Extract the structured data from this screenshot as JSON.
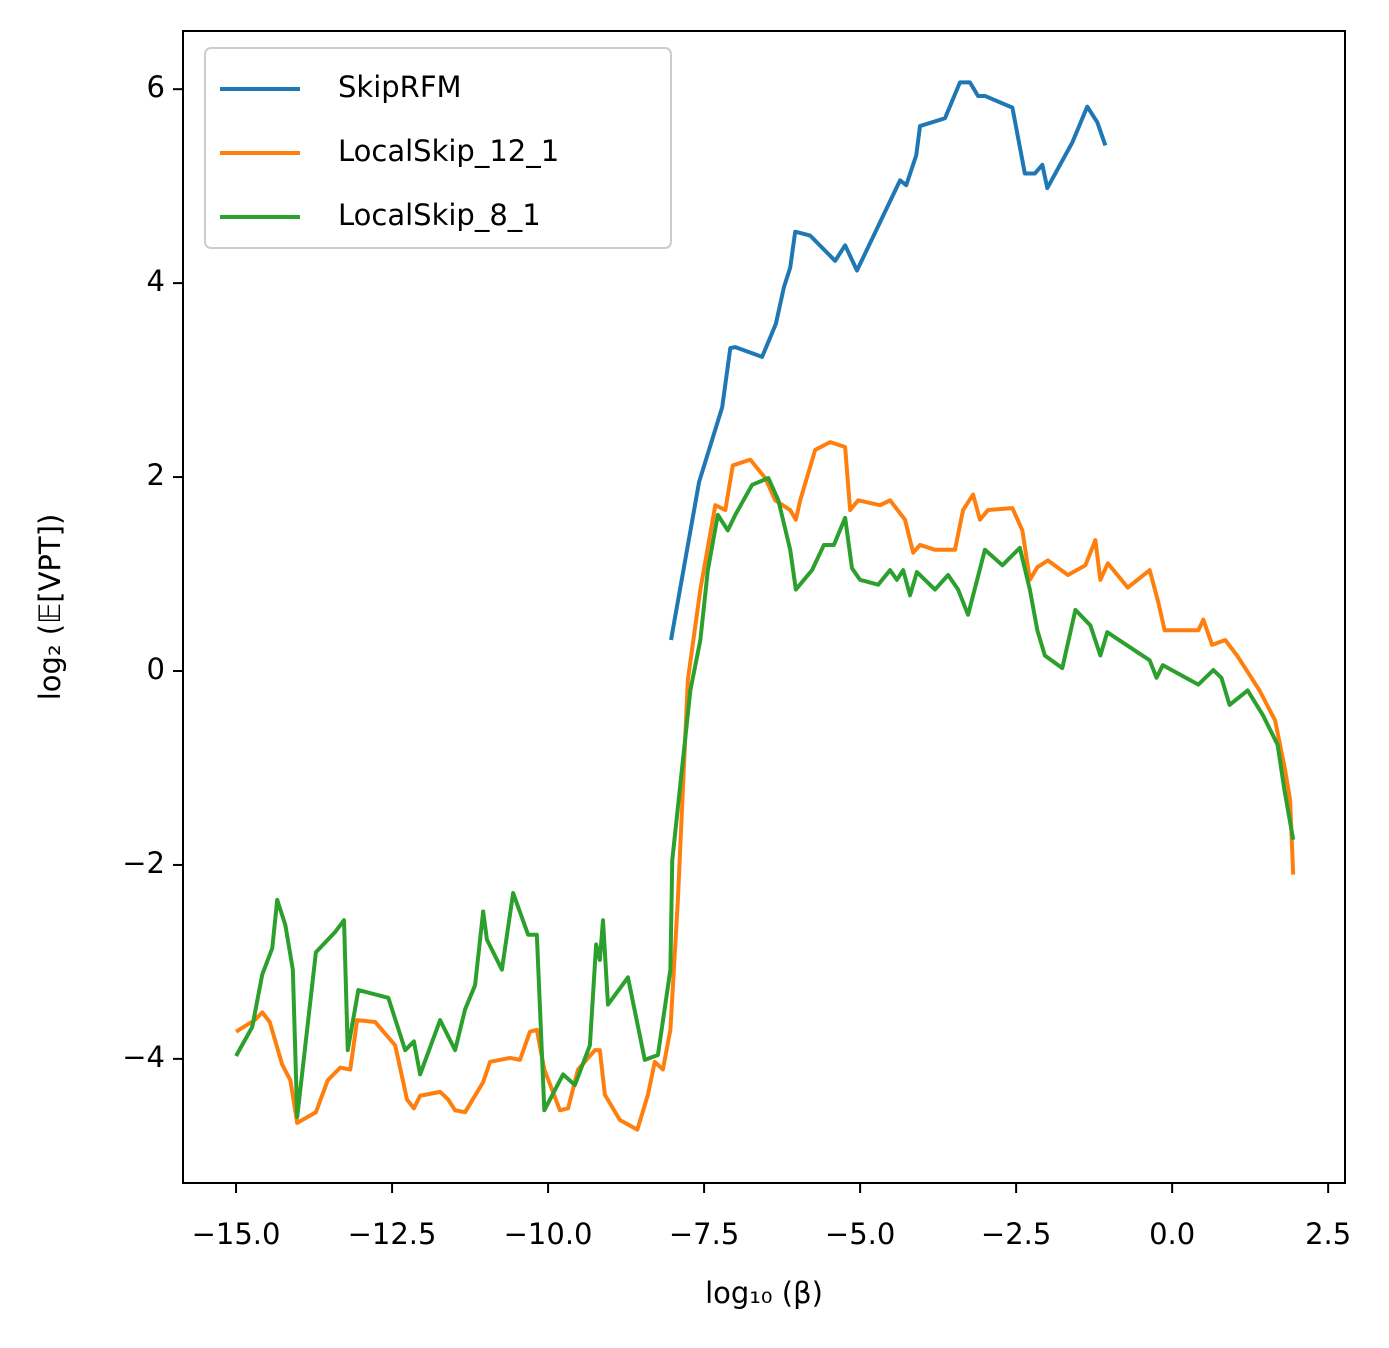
{
  "chart_data": {
    "type": "line",
    "xlabel": "log₁₀ (β)",
    "ylabel": "log₂ (𝔼[VPT])",
    "xlim": [
      -15.85,
      2.77
    ],
    "ylim": [
      -5.28,
      6.6
    ],
    "xticks": [
      {
        "value": -15,
        "label": "−15.0"
      },
      {
        "value": -12.5,
        "label": "−12.5"
      },
      {
        "value": -10,
        "label": "−10.0"
      },
      {
        "value": -7.5,
        "label": "−7.5"
      },
      {
        "value": -5,
        "label": "−5.0"
      },
      {
        "value": -2.5,
        "label": "−2.5"
      },
      {
        "value": 0,
        "label": "0.0"
      },
      {
        "value": 2.5,
        "label": "2.5"
      }
    ],
    "yticks": [
      {
        "value": -4,
        "label": "−4"
      },
      {
        "value": -2,
        "label": "−2"
      },
      0,
      2,
      4,
      6
    ],
    "legend": "upper left",
    "series": [
      {
        "name": "SkipRFM",
        "color": "#1f77b4",
        "x": [
          -8.03,
          -7.58,
          -7.21,
          -7.08,
          -7.0,
          -6.57,
          -6.35,
          -6.22,
          -6.12,
          -6.04,
          -5.8,
          -5.4,
          -5.24,
          -5.05,
          -4.36,
          -4.26,
          -4.1,
          -4.04,
          -3.64,
          -3.4,
          -3.24,
          -3.11,
          -3.0,
          -2.56,
          -2.36,
          -2.2,
          -2.08,
          -2.0,
          -1.6,
          -1.36,
          -1.2,
          -1.07
        ],
        "values": [
          0.32,
          1.95,
          2.72,
          3.33,
          3.34,
          3.24,
          3.58,
          3.96,
          4.16,
          4.53,
          4.49,
          4.23,
          4.39,
          4.13,
          5.06,
          5.01,
          5.32,
          5.62,
          5.7,
          6.07,
          6.07,
          5.93,
          5.93,
          5.81,
          5.13,
          5.13,
          5.22,
          4.98,
          5.45,
          5.82,
          5.66,
          5.42
        ]
      },
      {
        "name": "LocalSkip_12_1",
        "color": "#ff7f0e",
        "x": [
          -15.0,
          -14.7,
          -14.58,
          -14.46,
          -14.26,
          -14.13,
          -14.02,
          -13.72,
          -13.53,
          -13.33,
          -13.17,
          -13.06,
          -12.77,
          -12.45,
          -12.26,
          -12.15,
          -12.05,
          -11.73,
          -11.6,
          -11.49,
          -11.33,
          -11.04,
          -10.93,
          -10.61,
          -10.45,
          -10.29,
          -10.18,
          -10.06,
          -9.81,
          -9.68,
          -9.52,
          -9.25,
          -9.17,
          -9.09,
          -8.85,
          -8.57,
          -8.4,
          -8.29,
          -8.16,
          -8.04,
          -7.92,
          -7.76,
          -7.56,
          -7.32,
          -7.16,
          -7.04,
          -6.76,
          -6.52,
          -6.36,
          -6.12,
          -6.03,
          -5.96,
          -5.72,
          -5.48,
          -5.24,
          -5.16,
          -5.03,
          -4.68,
          -4.52,
          -4.28,
          -4.15,
          -4.04,
          -3.8,
          -3.48,
          -3.35,
          -3.19,
          -3.08,
          -2.95,
          -2.56,
          -2.4,
          -2.28,
          -2.16,
          -1.99,
          -1.67,
          -1.39,
          -1.23,
          -1.15,
          -1.03,
          -0.71,
          -0.36,
          -0.23,
          -0.12,
          0.42,
          0.5,
          0.64,
          0.85,
          1.04,
          1.4,
          1.65,
          1.81,
          1.89,
          1.94
        ],
        "values": [
          -3.72,
          -3.6,
          -3.52,
          -3.62,
          -4.06,
          -4.22,
          -4.66,
          -4.55,
          -4.22,
          -4.09,
          -4.11,
          -3.6,
          -3.62,
          -3.86,
          -4.42,
          -4.51,
          -4.38,
          -4.34,
          -4.42,
          -4.53,
          -4.55,
          -4.24,
          -4.03,
          -3.99,
          -4.01,
          -3.72,
          -3.7,
          -4.11,
          -4.53,
          -4.51,
          -4.11,
          -3.91,
          -3.91,
          -4.37,
          -4.63,
          -4.73,
          -4.37,
          -4.03,
          -4.11,
          -3.7,
          -2.36,
          -0.09,
          0.84,
          1.71,
          1.66,
          2.12,
          2.18,
          1.99,
          1.76,
          1.66,
          1.56,
          1.76,
          2.28,
          2.36,
          2.31,
          1.66,
          1.76,
          1.71,
          1.76,
          1.56,
          1.22,
          1.3,
          1.25,
          1.25,
          1.66,
          1.82,
          1.56,
          1.66,
          1.68,
          1.45,
          0.94,
          1.07,
          1.14,
          0.99,
          1.09,
          1.35,
          0.94,
          1.11,
          0.86,
          1.04,
          0.73,
          0.42,
          0.42,
          0.53,
          0.27,
          0.32,
          0.16,
          -0.2,
          -0.51,
          -1.02,
          -1.33,
          -2.1
        ]
      },
      {
        "name": "LocalSkip_8_1",
        "color": "#2ca02c",
        "x": [
          -15.0,
          -14.74,
          -14.58,
          -14.42,
          -14.34,
          -14.21,
          -14.09,
          -14.02,
          -13.72,
          -13.41,
          -13.27,
          -13.21,
          -13.04,
          -12.56,
          -12.29,
          -12.15,
          -12.05,
          -11.73,
          -11.49,
          -11.33,
          -11.17,
          -11.04,
          -10.98,
          -10.74,
          -10.56,
          -10.32,
          -10.18,
          -10.06,
          -9.76,
          -9.57,
          -9.33,
          -9.23,
          -9.17,
          -9.12,
          -9.04,
          -8.72,
          -8.45,
          -8.24,
          -8.04,
          -8.01,
          -7.72,
          -7.56,
          -7.44,
          -7.28,
          -7.12,
          -7.0,
          -6.73,
          -6.47,
          -6.31,
          -6.12,
          -6.03,
          -5.77,
          -5.58,
          -5.42,
          -5.24,
          -5.13,
          -5.0,
          -4.71,
          -4.52,
          -4.41,
          -4.31,
          -4.2,
          -4.09,
          -3.8,
          -3.59,
          -3.43,
          -3.27,
          -3.0,
          -2.72,
          -2.44,
          -2.28,
          -2.16,
          -2.04,
          -1.76,
          -1.55,
          -1.31,
          -1.15,
          -1.04,
          -0.36,
          -0.25,
          -0.15,
          0.42,
          0.66,
          0.79,
          0.92,
          1.21,
          1.45,
          1.69,
          1.8,
          1.94
        ],
        "values": [
          -3.97,
          -3.67,
          -3.13,
          -2.86,
          -2.36,
          -2.62,
          -3.08,
          -4.6,
          -2.9,
          -2.69,
          -2.57,
          -3.91,
          -3.29,
          -3.37,
          -3.91,
          -3.82,
          -4.16,
          -3.6,
          -3.91,
          -3.49,
          -3.24,
          -2.48,
          -2.77,
          -3.08,
          -2.29,
          -2.72,
          -2.72,
          -4.53,
          -4.16,
          -4.27,
          -3.86,
          -2.82,
          -2.98,
          -2.57,
          -3.44,
          -3.16,
          -4.01,
          -3.96,
          -3.08,
          -1.95,
          -0.2,
          0.32,
          1.04,
          1.61,
          1.45,
          1.61,
          1.92,
          1.99,
          1.76,
          1.25,
          0.84,
          1.04,
          1.3,
          1.3,
          1.58,
          1.06,
          0.94,
          0.89,
          1.04,
          0.94,
          1.04,
          0.78,
          1.02,
          0.84,
          0.99,
          0.84,
          0.58,
          1.25,
          1.09,
          1.27,
          0.84,
          0.42,
          0.16,
          0.03,
          0.63,
          0.47,
          0.16,
          0.4,
          0.11,
          -0.07,
          0.06,
          -0.14,
          0.01,
          -0.07,
          -0.35,
          -0.2,
          -0.45,
          -0.76,
          -1.23,
          -1.74
        ]
      }
    ]
  }
}
